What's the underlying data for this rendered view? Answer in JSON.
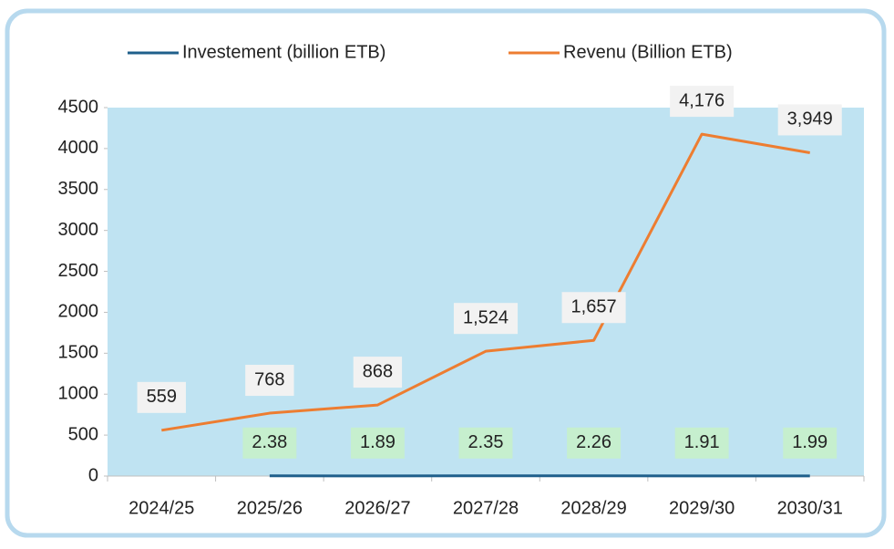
{
  "chart_data": {
    "type": "line",
    "categories": [
      "2024/25",
      "2025/26",
      "2026/27",
      "2027/28",
      "2028/29",
      "2029/30",
      "2030/31"
    ],
    "series": [
      {
        "name": "Investement (billion ETB)",
        "color": "#1f5f8b",
        "values": [
          null,
          2.38,
          1.89,
          2.35,
          2.26,
          1.91,
          1.99
        ]
      },
      {
        "name": "Revenu (Billion ETB)",
        "color": "#ed7d31",
        "values": [
          559,
          768,
          868,
          1524,
          1657,
          4176,
          3949
        ],
        "value_labels": [
          "559",
          "768",
          "868",
          "1,524",
          "1,657",
          "4,176",
          "3,949"
        ]
      }
    ],
    "ylim": [
      0,
      4500
    ],
    "yticks": [
      0,
      500,
      1000,
      1500,
      2000,
      2500,
      3000,
      3500,
      4000,
      4500
    ],
    "legend": "top",
    "plot_background": "#bfe3f2"
  }
}
